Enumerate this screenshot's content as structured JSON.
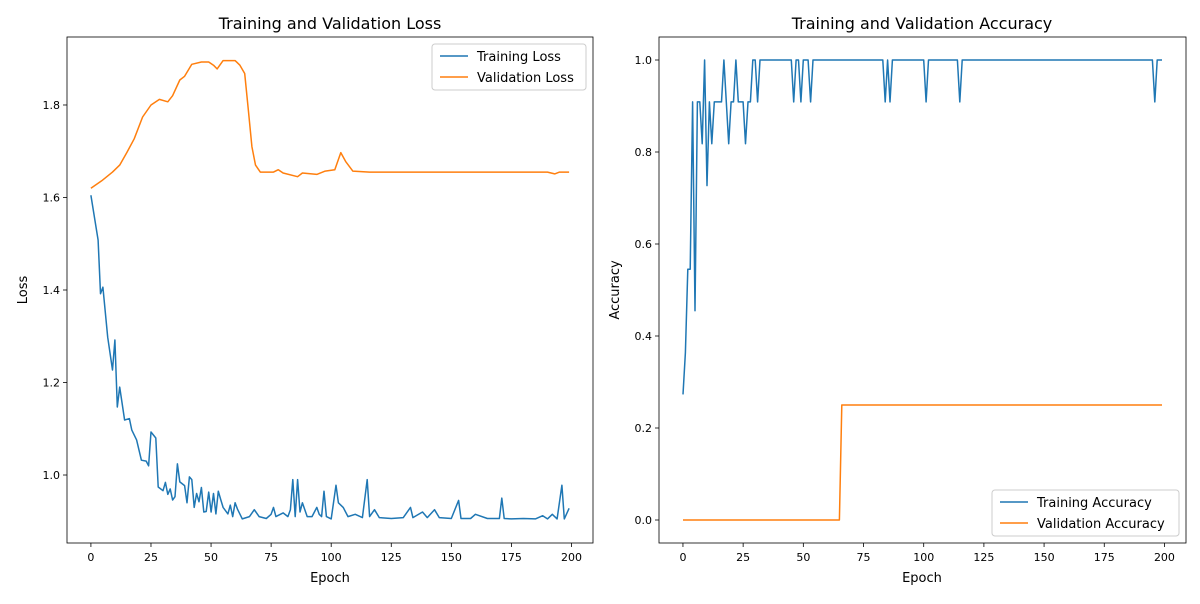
{
  "chart_data": [
    {
      "type": "line",
      "title": "Training and Validation Loss",
      "xlabel": "Epoch",
      "ylabel": "Loss",
      "xlim": [
        -9.95,
        208.95
      ],
      "ylim": [
        0.853,
        1.947
      ],
      "xticks": [
        0,
        25,
        50,
        75,
        100,
        125,
        150,
        175,
        200
      ],
      "yticks": [
        1.0,
        1.2,
        1.4,
        1.6,
        1.8
      ],
      "xtick_labels": [
        "0",
        "25",
        "50",
        "75",
        "100",
        "125",
        "150",
        "175",
        "200"
      ],
      "ytick_labels": [
        "1.0",
        "1.2",
        "1.4",
        "1.6",
        "1.8"
      ],
      "grid": false,
      "legend_position": "upper-right",
      "series": [
        {
          "name": "Training Loss",
          "color": "#1f77b4",
          "x": [
            0,
            3,
            4,
            5,
            7,
            9,
            10,
            11,
            12,
            14,
            16,
            17,
            19,
            21,
            23,
            24,
            25,
            27,
            28,
            30,
            31,
            32,
            33,
            34,
            35,
            36,
            37,
            39,
            40,
            41,
            42,
            43,
            44,
            45,
            46,
            47,
            48,
            49,
            50,
            51,
            52,
            53,
            54,
            55,
            57,
            58,
            59,
            60,
            61,
            63,
            66,
            68,
            70,
            73,
            75,
            76,
            77,
            80,
            82,
            83,
            84,
            85,
            86,
            87,
            88,
            90,
            92,
            94,
            95,
            96,
            97,
            98,
            100,
            102,
            103,
            105,
            107,
            110,
            113,
            115,
            116,
            118,
            120,
            125,
            130,
            133,
            134,
            138,
            140,
            143,
            145,
            150,
            153,
            154,
            158,
            160,
            165,
            170,
            171,
            172,
            175,
            180,
            185,
            188,
            190,
            192,
            194,
            196,
            197,
            199
          ],
          "y": [
            1.605,
            1.508,
            1.392,
            1.406,
            1.298,
            1.227,
            1.292,
            1.147,
            1.19,
            1.119,
            1.122,
            1.097,
            1.076,
            1.032,
            1.03,
            1.02,
            1.093,
            1.08,
            0.974,
            0.966,
            0.984,
            0.958,
            0.97,
            0.946,
            0.953,
            1.024,
            0.985,
            0.977,
            0.94,
            0.996,
            0.99,
            0.93,
            0.96,
            0.942,
            0.973,
            0.92,
            0.921,
            0.963,
            0.92,
            0.96,
            0.916,
            0.965,
            0.947,
            0.93,
            0.916,
            0.935,
            0.91,
            0.94,
            0.926,
            0.905,
            0.91,
            0.925,
            0.91,
            0.906,
            0.915,
            0.93,
            0.91,
            0.918,
            0.91,
            0.925,
            0.99,
            0.91,
            0.99,
            0.92,
            0.94,
            0.91,
            0.91,
            0.93,
            0.915,
            0.91,
            0.965,
            0.91,
            0.905,
            0.978,
            0.94,
            0.93,
            0.91,
            0.915,
            0.908,
            0.99,
            0.91,
            0.925,
            0.908,
            0.906,
            0.908,
            0.93,
            0.908,
            0.92,
            0.908,
            0.925,
            0.908,
            0.906,
            0.945,
            0.906,
            0.906,
            0.915,
            0.906,
            0.906,
            0.95,
            0.906,
            0.905,
            0.906,
            0.905,
            0.912,
            0.905,
            0.915,
            0.905,
            0.978,
            0.905,
            0.928
          ]
        },
        {
          "name": "Validation Loss",
          "color": "#ff7f0e",
          "x": [
            0,
            4.5,
            9,
            12,
            15,
            18,
            21.5,
            25,
            28.5,
            32,
            34,
            37,
            39,
            42,
            46,
            49,
            51,
            52.5,
            55,
            60,
            62,
            64,
            65.5,
            67,
            68.5,
            70.5,
            76,
            78,
            80,
            86,
            88,
            94,
            97.5,
            101.5,
            104,
            106,
            109,
            116,
            150,
            190,
            193,
            195,
            199
          ],
          "y": [
            1.62,
            1.636,
            1.655,
            1.67,
            1.698,
            1.727,
            1.774,
            1.8,
            1.812,
            1.807,
            1.82,
            1.854,
            1.862,
            1.888,
            1.893,
            1.893,
            1.886,
            1.878,
            1.896,
            1.896,
            1.886,
            1.868,
            1.79,
            1.71,
            1.67,
            1.655,
            1.655,
            1.66,
            1.653,
            1.645,
            1.653,
            1.65,
            1.657,
            1.66,
            1.697,
            1.678,
            1.657,
            1.655,
            1.655,
            1.655,
            1.651,
            1.655,
            1.655
          ]
        }
      ]
    },
    {
      "type": "line",
      "title": "Training and Validation Accuracy",
      "xlabel": "Epoch",
      "ylabel": "Accuracy",
      "xlim": [
        -9.95,
        208.95
      ],
      "ylim": [
        -0.05,
        1.05
      ],
      "xticks": [
        0,
        25,
        50,
        75,
        100,
        125,
        150,
        175,
        200
      ],
      "yticks": [
        0.0,
        0.2,
        0.4,
        0.6,
        0.8,
        1.0
      ],
      "xtick_labels": [
        "0",
        "25",
        "50",
        "75",
        "100",
        "125",
        "150",
        "175",
        "200"
      ],
      "ytick_labels": [
        "0.0",
        "0.2",
        "0.4",
        "0.6",
        "0.8",
        "1.0"
      ],
      "grid": false,
      "legend_position": "lower-right",
      "series": [
        {
          "name": "Training Accuracy",
          "color": "#1f77b4",
          "x": [
            0,
            1,
            2,
            3,
            4,
            5,
            6,
            7,
            8,
            9,
            10,
            11,
            12,
            13,
            16,
            17,
            18,
            19,
            20,
            21,
            22,
            23,
            25,
            26,
            27,
            28,
            29,
            30,
            31,
            32,
            45,
            46,
            47,
            48,
            49,
            50,
            52,
            53,
            54,
            83,
            84,
            85,
            86,
            87,
            100,
            101,
            102,
            114,
            115,
            116,
            195,
            196,
            197,
            199
          ],
          "y": [
            0.273,
            0.364,
            0.545,
            0.545,
            0.909,
            0.455,
            0.909,
            0.909,
            0.818,
            1.0,
            0.727,
            0.909,
            0.818,
            0.909,
            0.909,
            1.0,
            0.909,
            0.818,
            0.909,
            0.909,
            1.0,
            0.909,
            0.909,
            0.818,
            0.909,
            0.909,
            1.0,
            1.0,
            0.909,
            1.0,
            1.0,
            0.909,
            1.0,
            1.0,
            0.909,
            1.0,
            1.0,
            0.909,
            1.0,
            1.0,
            0.909,
            1.0,
            0.909,
            1.0,
            1.0,
            0.909,
            1.0,
            1.0,
            0.909,
            1.0,
            1.0,
            0.909,
            1.0,
            1.0
          ]
        },
        {
          "name": "Validation Accuracy",
          "color": "#ff7f0e",
          "x": [
            0,
            65,
            66,
            199
          ],
          "y": [
            0.0,
            0.0,
            0.25,
            0.25
          ]
        }
      ]
    }
  ]
}
